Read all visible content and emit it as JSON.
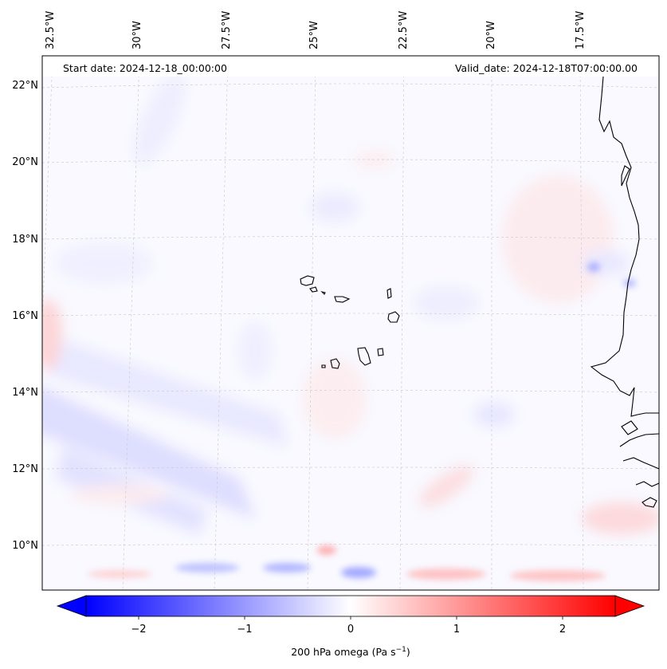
{
  "header": {
    "start_date": "Start date: 2024-12-18_00:00:00",
    "valid_date": "Valid_date: 2024-12-18T07:00:00.00"
  },
  "longitude_labels": [
    "32.5°W",
    "30°W",
    "27.5°W",
    "25°W",
    "22.5°W",
    "20°W",
    "17.5°W"
  ],
  "latitude_labels": [
    "22°N",
    "20°N",
    "18°N",
    "16°N",
    "14°N",
    "12°N",
    "10°N"
  ],
  "colorbar": {
    "ticks": [
      "−2",
      "−1",
      "0",
      "1",
      "2"
    ],
    "title": "200 hPa omega (Pa s",
    "title_sup": "−1",
    "title_end": ")",
    "colormap": "bwr",
    "range": [
      -2.7,
      2.7
    ],
    "extend": "both",
    "colors": {
      "min": "#0000ff",
      "mid": "#ffffff",
      "max": "#ff0000"
    }
  },
  "map": {
    "projection": "Lambert conformal",
    "extent": {
      "lon": [
        -32.5,
        -16.5
      ],
      "lat": [
        9,
        22.8
      ]
    },
    "gridlines": "dashed",
    "coastline_color": "#000000"
  }
}
